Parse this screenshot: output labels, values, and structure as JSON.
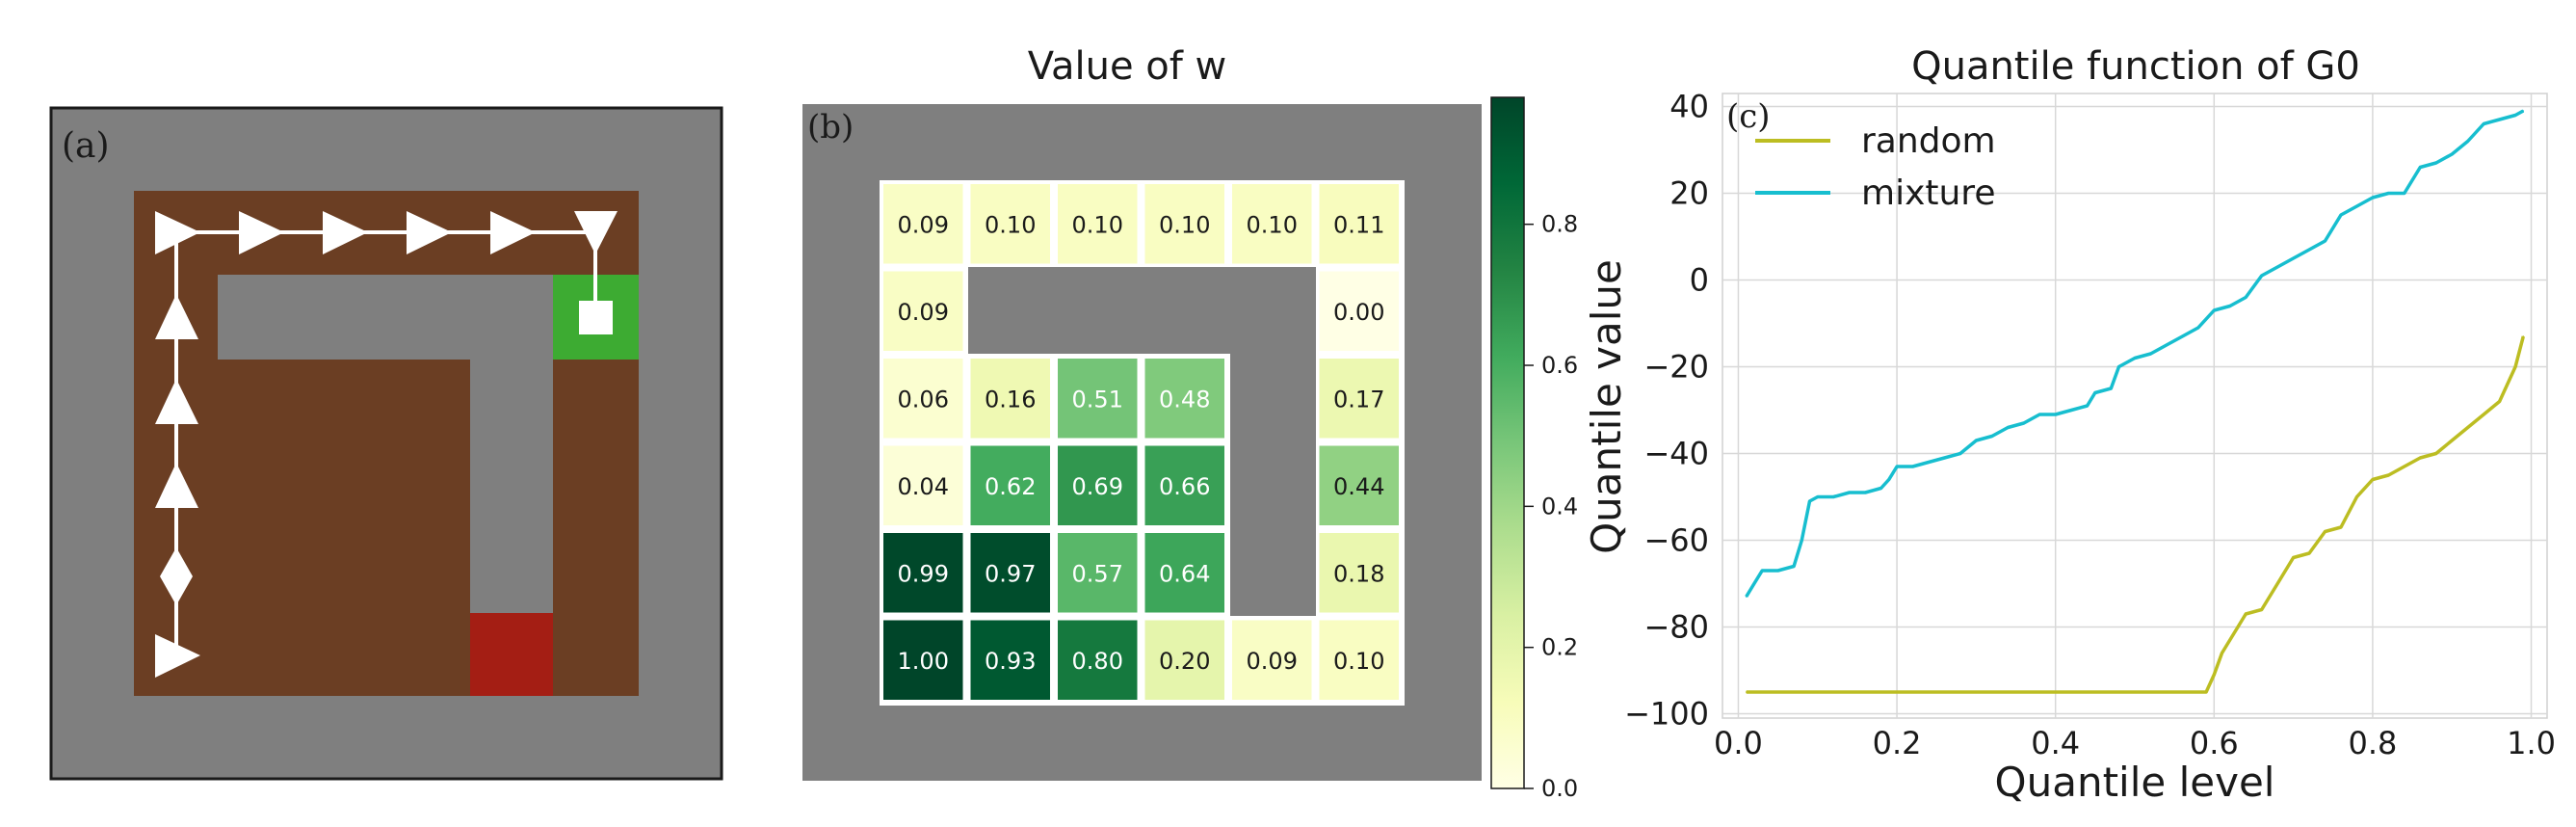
{
  "panel_a": {
    "label": "(a)",
    "colors": {
      "background": "#7f7f7f",
      "floor": "#6b3e23",
      "wall": "#7f7f7f",
      "goal": "#3dab32",
      "trap": "#a41e14",
      "path": "#ffffff"
    },
    "path_markers": [
      "right",
      "right",
      "right",
      "right",
      "right",
      "right",
      "down",
      "up",
      "up",
      "up",
      "diamond",
      "right"
    ]
  },
  "panel_b": {
    "label": "(b)",
    "title": "Value of w",
    "colorbar_label": "Quantile value",
    "colorbar_ticks": [
      "0.0",
      "0.2",
      "0.4",
      "0.6",
      "0.8"
    ],
    "colormap": [
      "#ffffe5",
      "#f7fcb9",
      "#d9f0a3",
      "#addd8e",
      "#78c679",
      "#41ab5d",
      "#238443",
      "#006837",
      "#004529"
    ],
    "cells": [
      {
        "row": 0,
        "col": 0,
        "text": "0.09",
        "value": 0.09
      },
      {
        "row": 0,
        "col": 1,
        "text": "0.10",
        "value": 0.1
      },
      {
        "row": 0,
        "col": 2,
        "text": "0.10",
        "value": 0.1
      },
      {
        "row": 0,
        "col": 3,
        "text": "0.10",
        "value": 0.1
      },
      {
        "row": 0,
        "col": 4,
        "text": "0.10",
        "value": 0.1
      },
      {
        "row": 0,
        "col": 5,
        "text": "0.11",
        "value": 0.11
      },
      {
        "row": 1,
        "col": 0,
        "text": "0.09",
        "value": 0.09
      },
      {
        "row": 1,
        "col": 5,
        "text": "0.00",
        "value": 0.0
      },
      {
        "row": 2,
        "col": 0,
        "text": "0.06",
        "value": 0.06
      },
      {
        "row": 2,
        "col": 1,
        "text": "0.16",
        "value": 0.16
      },
      {
        "row": 2,
        "col": 2,
        "text": "0.51",
        "value": 0.51
      },
      {
        "row": 2,
        "col": 3,
        "text": "0.48",
        "value": 0.48
      },
      {
        "row": 2,
        "col": 5,
        "text": "0.17",
        "value": 0.17
      },
      {
        "row": 3,
        "col": 0,
        "text": "0.04",
        "value": 0.04
      },
      {
        "row": 3,
        "col": 1,
        "text": "0.62",
        "value": 0.62
      },
      {
        "row": 3,
        "col": 2,
        "text": "0.69",
        "value": 0.69
      },
      {
        "row": 3,
        "col": 3,
        "text": "0.66",
        "value": 0.66
      },
      {
        "row": 3,
        "col": 5,
        "text": "0.44",
        "value": 0.44
      },
      {
        "row": 4,
        "col": 0,
        "text": "0.99",
        "value": 0.99
      },
      {
        "row": 4,
        "col": 1,
        "text": "0.97",
        "value": 0.97
      },
      {
        "row": 4,
        "col": 2,
        "text": "0.57",
        "value": 0.57
      },
      {
        "row": 4,
        "col": 3,
        "text": "0.64",
        "value": 0.64
      },
      {
        "row": 4,
        "col": 5,
        "text": "0.18",
        "value": 0.18
      },
      {
        "row": 5,
        "col": 0,
        "text": "1.00",
        "value": 1.0
      },
      {
        "row": 5,
        "col": 1,
        "text": "0.93",
        "value": 0.93
      },
      {
        "row": 5,
        "col": 2,
        "text": "0.80",
        "value": 0.8
      },
      {
        "row": 5,
        "col": 3,
        "text": "0.20",
        "value": 0.2
      },
      {
        "row": 5,
        "col": 4,
        "text": "0.09",
        "value": 0.09
      },
      {
        "row": 5,
        "col": 5,
        "text": "0.10",
        "value": 0.1
      }
    ]
  },
  "chart_data": {
    "type": "line",
    "label": "(c)",
    "title": "Quantile function of G0",
    "xlabel": "Quantile level",
    "ylabel": "",
    "xlim": [
      -0.02,
      1.02
    ],
    "ylim": [
      -101,
      43
    ],
    "xticks": [
      "0.0",
      "0.2",
      "0.4",
      "0.6",
      "0.8",
      "1.0"
    ],
    "yticks": [
      "−100",
      "−80",
      "−60",
      "−40",
      "−20",
      "0",
      "20",
      "40"
    ],
    "grid": true,
    "legend": "top-left",
    "series": [
      {
        "name": "random",
        "color": "#bcbd22",
        "x": [
          0.01,
          0.1,
          0.2,
          0.3,
          0.4,
          0.5,
          0.59,
          0.6,
          0.61,
          0.63,
          0.64,
          0.66,
          0.68,
          0.7,
          0.72,
          0.74,
          0.76,
          0.78,
          0.8,
          0.82,
          0.84,
          0.86,
          0.88,
          0.9,
          0.92,
          0.94,
          0.96,
          0.98,
          0.99
        ],
        "y": [
          -95,
          -95,
          -95,
          -95,
          -95,
          -95,
          -95,
          -91,
          -86,
          -80,
          -77,
          -76,
          -70,
          -64,
          -63,
          -58,
          -57,
          -50,
          -46,
          -45,
          -43,
          -41,
          -40,
          -37,
          -34,
          -31,
          -28,
          -20,
          -13
        ]
      },
      {
        "name": "mixture",
        "color": "#17becf",
        "x": [
          0.01,
          0.02,
          0.03,
          0.05,
          0.07,
          0.08,
          0.09,
          0.1,
          0.12,
          0.14,
          0.16,
          0.18,
          0.19,
          0.2,
          0.22,
          0.24,
          0.26,
          0.28,
          0.3,
          0.32,
          0.34,
          0.36,
          0.38,
          0.4,
          0.42,
          0.44,
          0.45,
          0.47,
          0.48,
          0.5,
          0.52,
          0.54,
          0.56,
          0.58,
          0.6,
          0.62,
          0.64,
          0.66,
          0.68,
          0.7,
          0.72,
          0.74,
          0.76,
          0.78,
          0.8,
          0.82,
          0.84,
          0.86,
          0.88,
          0.9,
          0.92,
          0.94,
          0.96,
          0.98,
          0.99
        ],
        "y": [
          -73,
          -70,
          -67,
          -67,
          -66,
          -60,
          -51,
          -50,
          -50,
          -49,
          -49,
          -48,
          -46,
          -43,
          -43,
          -42,
          -41,
          -40,
          -37,
          -36,
          -34,
          -33,
          -31,
          -31,
          -30,
          -29,
          -26,
          -25,
          -20,
          -18,
          -17,
          -15,
          -13,
          -11,
          -7,
          -6,
          -4,
          1,
          3,
          5,
          7,
          9,
          15,
          17,
          19,
          20,
          20,
          26,
          27,
          29,
          32,
          36,
          37,
          38,
          39
        ]
      }
    ]
  }
}
